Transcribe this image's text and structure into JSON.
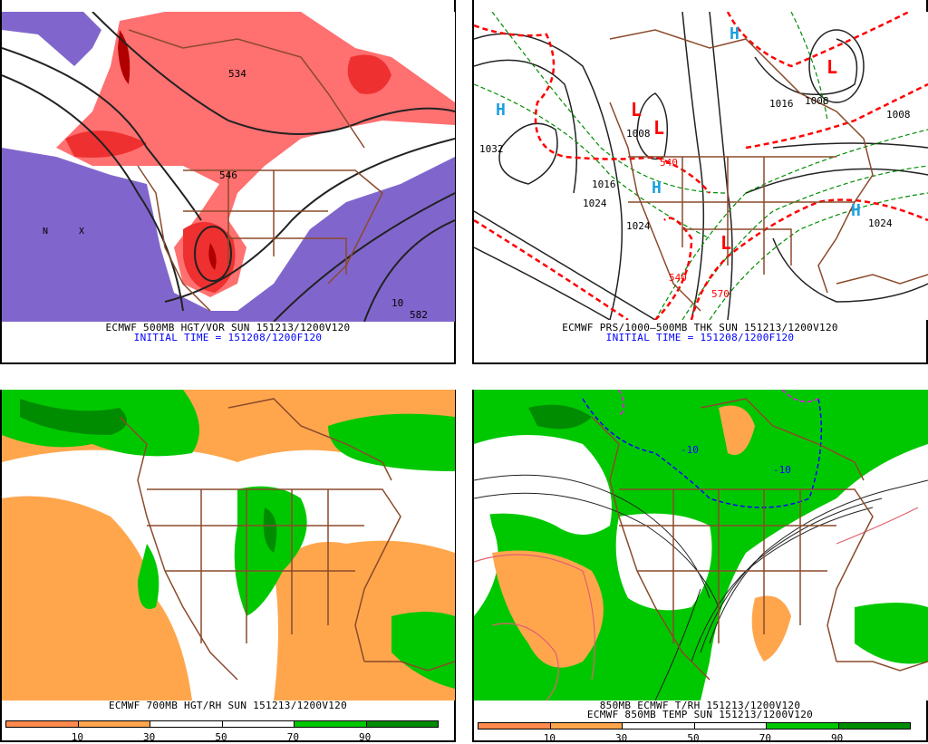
{
  "panels": [
    {
      "caption": "ECMWF 500MB HGT/VOR SUN 151213/1200V120",
      "initial_time": "INITIAL TIME = 151208/1200F120",
      "labels": [
        "546",
        "534",
        "582",
        "10",
        "N",
        "X"
      ]
    },
    {
      "caption": "ECMWF PRS/1000—500MB THK SUN 151213/1200V120",
      "initial_time": "INITIAL TIME = 151208/1200F120",
      "labels": [
        "1032",
        "1024",
        "1016",
        "1008",
        "1024",
        "1016",
        "1008",
        "1008",
        "1024",
        "540",
        "540",
        "570"
      ],
      "highs": [
        "H",
        "H",
        "H",
        "H"
      ],
      "lows": [
        "L",
        "L",
        "L",
        "L"
      ]
    },
    {
      "caption": "ECMWF 700MB HGT/RH SUN 151213/1200V120",
      "colorbar_ticks": [
        "10",
        "30",
        "50",
        "70",
        "90"
      ]
    },
    {
      "caption": "850MB ECMWF T/RH 151213/1200V120",
      "caption2": "ECMWF 850MB TEMP SUN 151213/1200V120",
      "colorbar_ticks": [
        "10",
        "30",
        "50",
        "70",
        "90"
      ],
      "labels": [
        "-10",
        "-10"
      ]
    }
  ],
  "colors": {
    "rh_bins": [
      "#ff8a4d",
      "#ffa64d",
      "#ffffff",
      "#ffffff",
      "#00c800",
      "#008c00"
    ],
    "vort_neg": "#8066cc",
    "vort_pos": [
      "#ff7070",
      "#ee3030",
      "#b00000"
    ],
    "borders": "#8b4a2b",
    "thickness": "#ff0000",
    "high": "#1ca0e0",
    "low": "#ff0000"
  }
}
